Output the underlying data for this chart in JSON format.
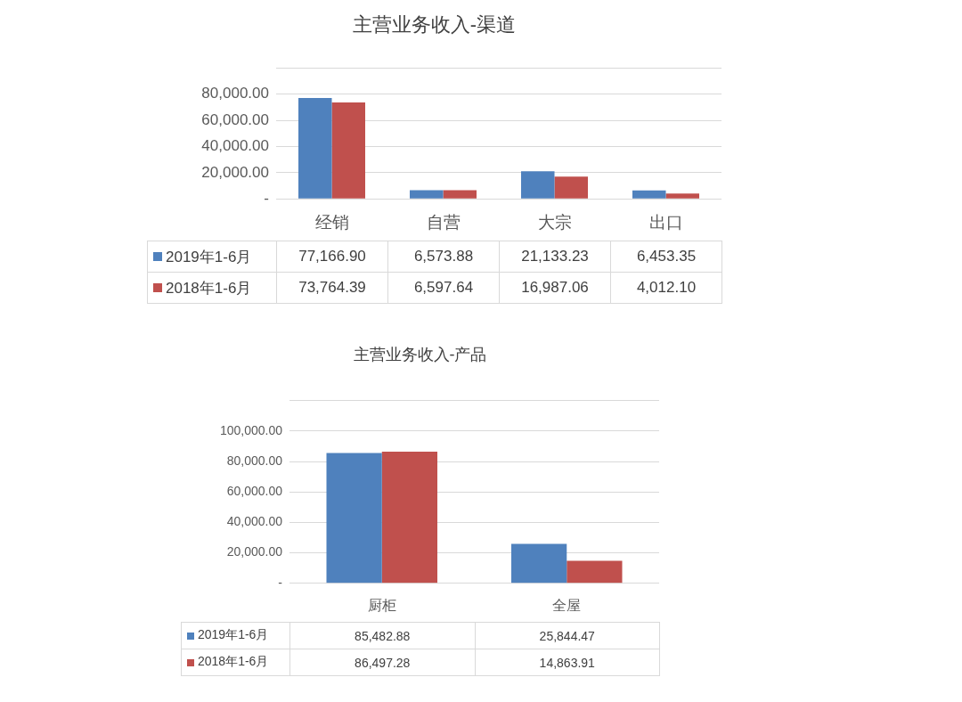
{
  "chart_data": [
    {
      "type": "bar",
      "title": "主营业务收入-渠道",
      "categories": [
        "经销",
        "自营",
        "大宗",
        "出口"
      ],
      "series": [
        {
          "name": "2019年1-6月",
          "color": "#4f81bd",
          "values": [
            77166.9,
            6573.88,
            21133.23,
            6453.35
          ],
          "value_labels": [
            "77,166.90",
            "6,573.88",
            "21,133.23",
            "6,453.35"
          ]
        },
        {
          "name": "2018年1-6月",
          "color": "#c0504d",
          "values": [
            73764.39,
            6597.64,
            16987.06,
            4012.1
          ],
          "value_labels": [
            "73,764.39",
            "6,597.64",
            "16,987.06",
            "4,012.10"
          ]
        }
      ],
      "ylim": [
        0,
        100000
      ],
      "yticks": [
        {
          "value": 0,
          "label": "-"
        },
        {
          "value": 20000,
          "label": "20,000.00"
        },
        {
          "value": 40000,
          "label": "40,000.00"
        },
        {
          "value": 60000,
          "label": "60,000.00"
        },
        {
          "value": 80000,
          "label": "80,000.00"
        },
        {
          "value": 100000,
          "label": null
        }
      ],
      "grid": "y",
      "legend": "bottom left"
    },
    {
      "type": "bar",
      "title": "主营业务收入-产品",
      "categories": [
        "厨柜",
        "全屋"
      ],
      "series": [
        {
          "name": "2019年1-6月",
          "color": "#4f81bd",
          "values": [
            85482.88,
            25844.47
          ],
          "value_labels": [
            "85,482.88",
            "25,844.47"
          ]
        },
        {
          "name": "2018年1-6月",
          "color": "#c0504d",
          "values": [
            86497.28,
            14863.91
          ],
          "value_labels": [
            "86,497.28",
            "14,863.91"
          ]
        }
      ],
      "ylim": [
        0,
        120000
      ],
      "yticks": [
        {
          "value": 0,
          "label": "-"
        },
        {
          "value": 20000,
          "label": "20,000.00"
        },
        {
          "value": 40000,
          "label": "40,000.00"
        },
        {
          "value": 60000,
          "label": "60,000.00"
        },
        {
          "value": 80000,
          "label": "80,000.00"
        },
        {
          "value": 100000,
          "label": "100,000.00"
        },
        {
          "value": 120000,
          "label": null
        }
      ],
      "grid": "y",
      "legend": "bottom left"
    }
  ]
}
